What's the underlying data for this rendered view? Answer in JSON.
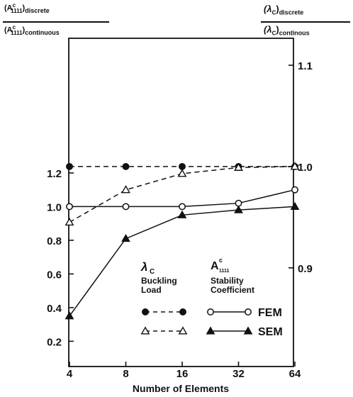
{
  "chart_data": {
    "type": "line",
    "x_label": "Number of Elements",
    "x_scale": "log2",
    "x_categories": [
      "4",
      "8",
      "16",
      "32",
      "64"
    ],
    "x": [
      4,
      8,
      16,
      32,
      64
    ],
    "left_axis": {
      "label_num": {
        "base": "(A",
        "sup": "c",
        "sub": "1111",
        "suffix": ")",
        "qual": "discrete"
      },
      "label_den": {
        "base": "(A",
        "sup": "c",
        "sub": "1111",
        "suffix": ")",
        "qual": "continuous"
      },
      "ticks": [
        "0.2",
        "0.4",
        "0.6",
        "0.8",
        "1.0",
        "1.2"
      ],
      "tick_values": [
        0.2,
        0.4,
        0.6,
        0.8,
        1.0,
        1.2
      ],
      "ylim": [
        0.05,
        2.0
      ]
    },
    "right_axis": {
      "label_num": {
        "base": "(λ",
        "sub": "C",
        "suffix": ")",
        "qual": "discrete"
      },
      "label_den": {
        "base": "(λ",
        "sub": "C",
        "suffix": ")",
        "qual": "continous"
      },
      "ticks": [
        "0.9",
        "1.0",
        "1.1"
      ],
      "tick_values": [
        0.9,
        1.0,
        1.1
      ],
      "ylim": [
        0.8026,
        1.1266
      ]
    },
    "series": [
      {
        "axis": "right",
        "marker": "filled-circle",
        "style": "dashed",
        "values": [
          1.0,
          1.0,
          1.0,
          1.0,
          1.0
        ]
      },
      {
        "axis": "right",
        "marker": "open-triangle",
        "style": "dashed",
        "values": [
          0.945,
          0.977,
          0.993,
          0.999,
          1.0
        ]
      },
      {
        "axis": "left",
        "marker": "open-circle",
        "style": "solid",
        "values": [
          1.0,
          1.0,
          1.0,
          1.02,
          1.1
        ]
      },
      {
        "axis": "left",
        "marker": "filled-triangle",
        "style": "solid",
        "values": [
          0.35,
          0.81,
          0.95,
          0.98,
          1.0
        ]
      }
    ],
    "legend": {
      "col1_title": {
        "base": "λ",
        "sub": "C"
      },
      "col1_desc": [
        "Buckling",
        "Load"
      ],
      "col2_title": {
        "base": "A",
        "sup": "c",
        "sub": "1111"
      },
      "col2_desc": [
        "Stability",
        "Coefficient"
      ],
      "row_labels": [
        "FEM",
        "SEM"
      ],
      "placement": "lower-right"
    },
    "grid": false
  }
}
